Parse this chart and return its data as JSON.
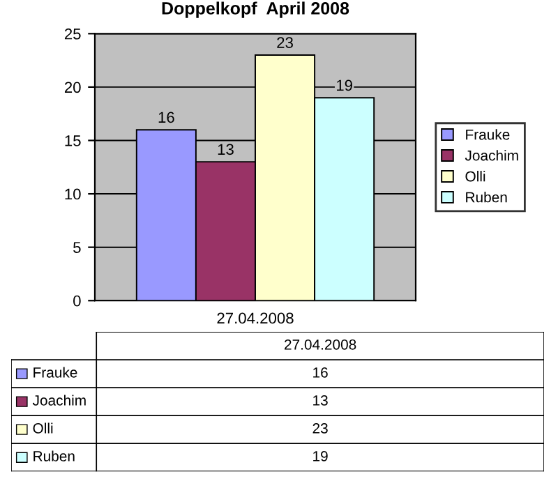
{
  "chart_data": {
    "type": "bar",
    "title": "Doppelkopf  April 2008",
    "categories": [
      "27.04.2008"
    ],
    "series": [
      {
        "name": "Frauke",
        "color": "#9999ff",
        "values": [
          16
        ]
      },
      {
        "name": "Joachim",
        "color": "#993366",
        "values": [
          13
        ]
      },
      {
        "name": "Olli",
        "color": "#ffffcc",
        "values": [
          23
        ]
      },
      {
        "name": "Ruben",
        "color": "#ccffff",
        "values": [
          19
        ]
      }
    ],
    "annotations": [
      "16",
      "13",
      "23",
      "19"
    ],
    "ylim": [
      0,
      25
    ],
    "yticks": [
      0,
      5,
      10,
      15,
      20,
      25
    ],
    "grid": "y",
    "legend": "right",
    "data_labels": true
  }
}
